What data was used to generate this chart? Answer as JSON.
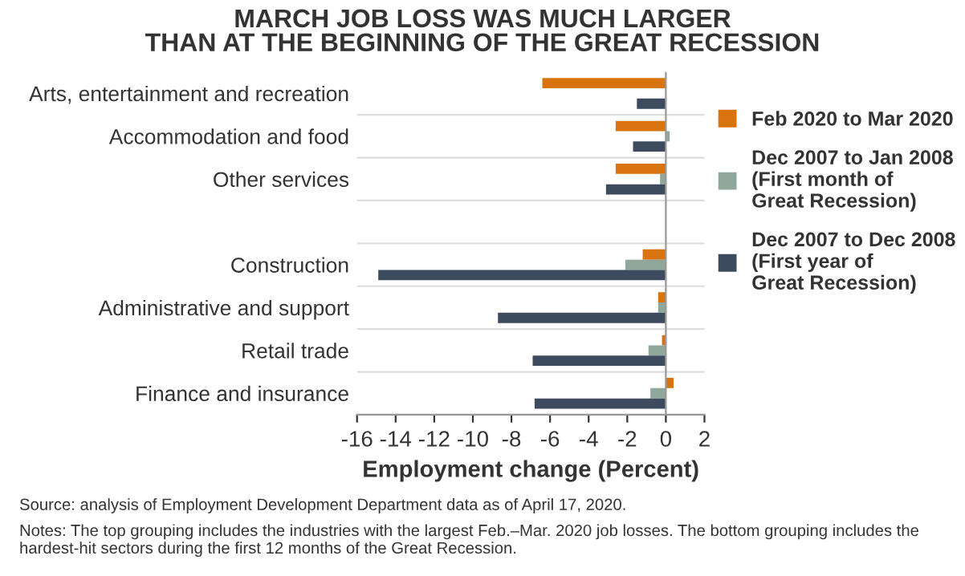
{
  "chart_data": {
    "type": "bar",
    "orientation": "horizontal",
    "title": "MARCH JOB LOSS WAS MUCH LARGER\nTHAN AT THE BEGINNING OF THE GREAT RECESSION",
    "categories": [
      "Arts, entertainment and recreation",
      "Accommodation and food",
      "Other services",
      null,
      "Construction",
      "Administrative and support",
      "Retail trade",
      "Finance and insurance"
    ],
    "series": [
      {
        "name": "Feb 2020 to Mar 2020",
        "color": "#d9730d",
        "values": [
          -6.4,
          -2.6,
          -2.6,
          null,
          -1.2,
          -0.4,
          -0.2,
          0.4
        ]
      },
      {
        "name": "Dec 2007 to Jan 2008\n(First month of\nGreat Recession)",
        "color": "#8fa89b",
        "values": [
          0,
          0.2,
          -0.3,
          null,
          -2.1,
          -0.4,
          -0.9,
          -0.8
        ]
      },
      {
        "name": "Dec 2007 to Dec 2008\n(First year of\nGreat Recession)",
        "color": "#3e4a5e",
        "values": [
          -1.5,
          -1.7,
          -3.1,
          null,
          -14.9,
          -8.7,
          -6.9,
          -6.8
        ]
      }
    ],
    "xlim": [
      -16,
      2
    ],
    "xticks": [
      -16,
      -14,
      -12,
      -10,
      -8,
      -6,
      -4,
      -2,
      0,
      2
    ],
    "xlabel": "Employment change (Percent)",
    "grid": "y",
    "legend": "right",
    "annotations": [
      "Source: analysis of Employment Development Department data as of April 17, 2020.",
      "Notes: The top grouping includes the industries with the largest Feb.–Mar. 2020 job losses. The bottom grouping includes the hardest-hit sectors during the first 12 months of the Great Recession."
    ]
  }
}
